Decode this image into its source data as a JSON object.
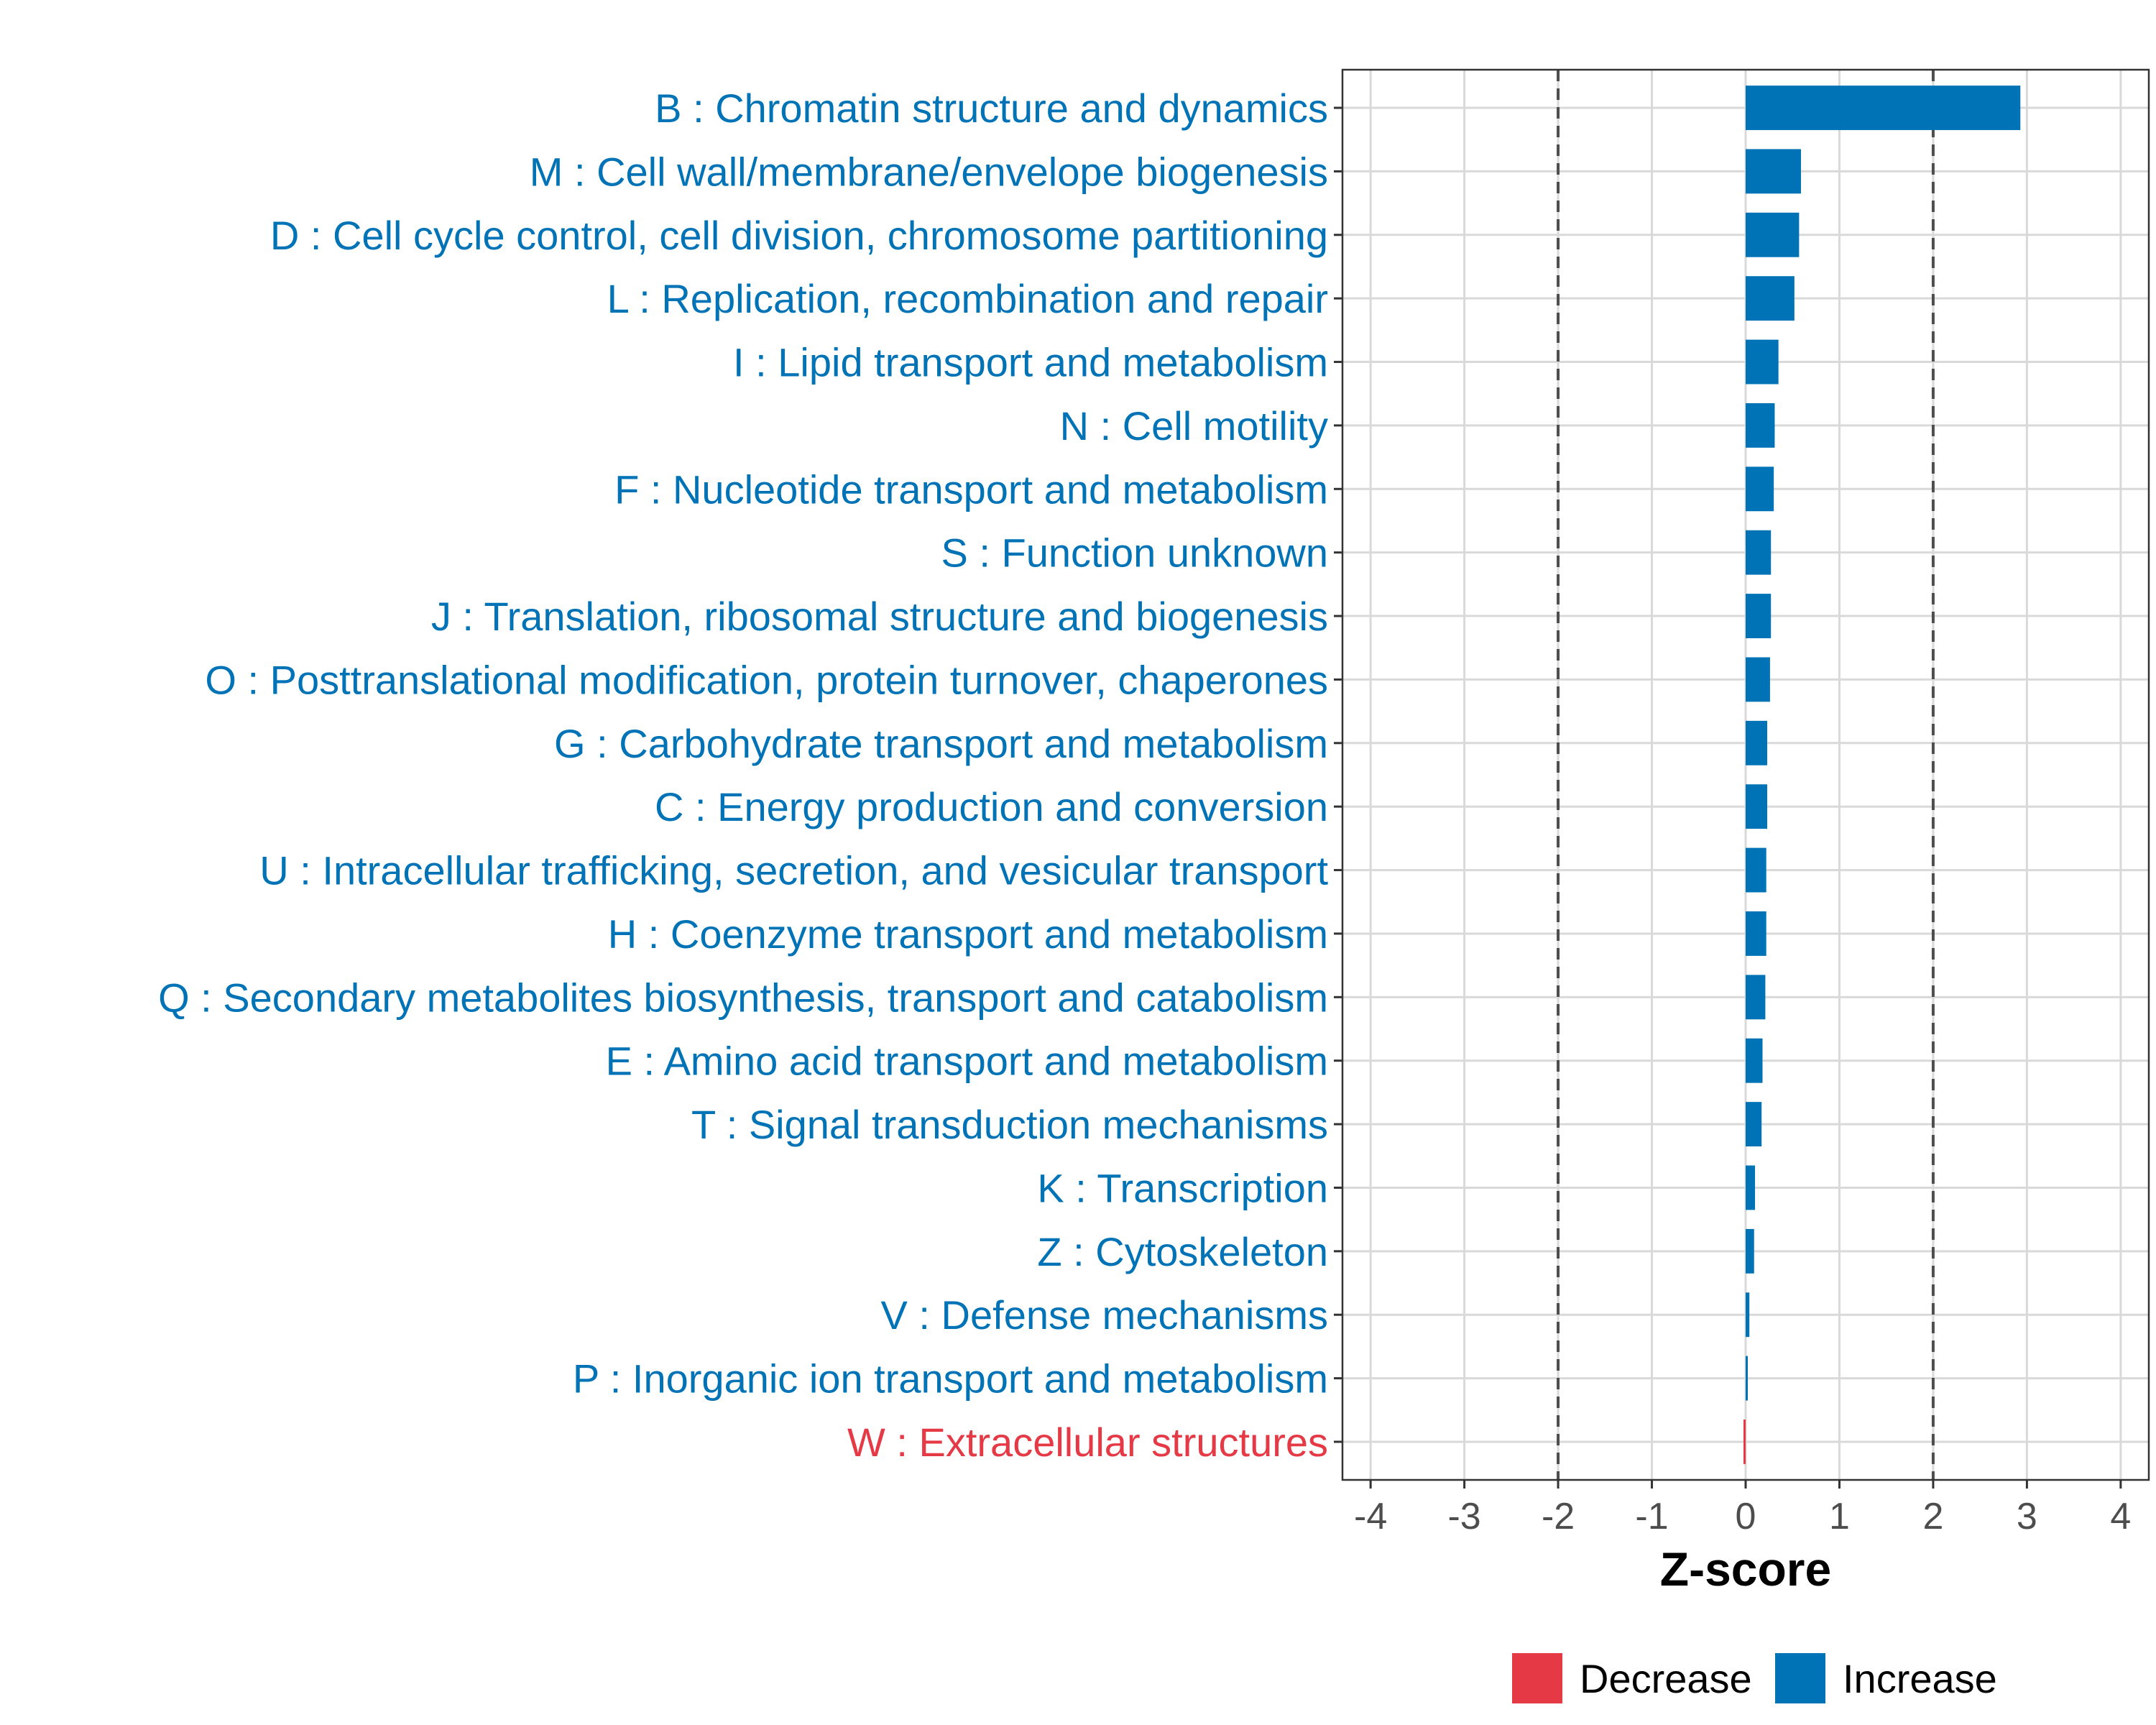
{
  "colors": {
    "increase": "#0073b7",
    "decrease": "#e63946",
    "grid": "#d9d9d9",
    "panel_border": "#333333",
    "threshold_line": "#4d4d4d"
  },
  "chart_data": {
    "type": "bar",
    "orientation": "horizontal",
    "xlabel": "Z-score",
    "xlim": [
      -4.3,
      4.3
    ],
    "x_ticks": [
      -4,
      -3,
      -2,
      -1,
      0,
      1,
      2,
      3,
      4
    ],
    "x_tick_labels": [
      "-4",
      "-3",
      "-2",
      "-1",
      "0",
      "1",
      "2",
      "3",
      "4"
    ],
    "threshold_lines": [
      -2,
      2
    ],
    "grid": true,
    "legend_position": "bottom",
    "legend": [
      {
        "key": "decrease",
        "label": "Decrease"
      },
      {
        "key": "increase",
        "label": "Increase"
      }
    ],
    "categories": [
      "B : Chromatin structure and dynamics",
      "M : Cell wall/membrane/envelope biogenesis",
      "D : Cell cycle control, cell division, chromosome partitioning",
      "L : Replication, recombination and repair",
      "I : Lipid transport and metabolism",
      "N : Cell motility",
      "F : Nucleotide transport and metabolism",
      "S : Function unknown",
      "J : Translation, ribosomal structure and biogenesis",
      "O : Posttranslational modification, protein turnover, chaperones",
      "G : Carbohydrate transport and metabolism",
      "C : Energy production and conversion",
      "U : Intracellular trafficking, secretion, and vesicular transport",
      "H : Coenzyme transport and metabolism",
      "Q : Secondary metabolites biosynthesis, transport and catabolism",
      "E : Amino acid transport and metabolism",
      "T : Signal transduction mechanisms",
      "K : Transcription",
      "Z : Cytoskeleton",
      "V : Defense mechanisms",
      "P : Inorganic ion transport and metabolism",
      "W : Extracellular structures"
    ],
    "values": [
      2.93,
      0.59,
      0.57,
      0.52,
      0.35,
      0.31,
      0.3,
      0.27,
      0.27,
      0.26,
      0.23,
      0.23,
      0.22,
      0.22,
      0.21,
      0.18,
      0.17,
      0.1,
      0.09,
      0.04,
      0.01,
      -0.02
    ],
    "directions": [
      "increase",
      "increase",
      "increase",
      "increase",
      "increase",
      "increase",
      "increase",
      "increase",
      "increase",
      "increase",
      "increase",
      "increase",
      "increase",
      "increase",
      "increase",
      "increase",
      "increase",
      "increase",
      "increase",
      "increase",
      "increase",
      "decrease"
    ]
  }
}
